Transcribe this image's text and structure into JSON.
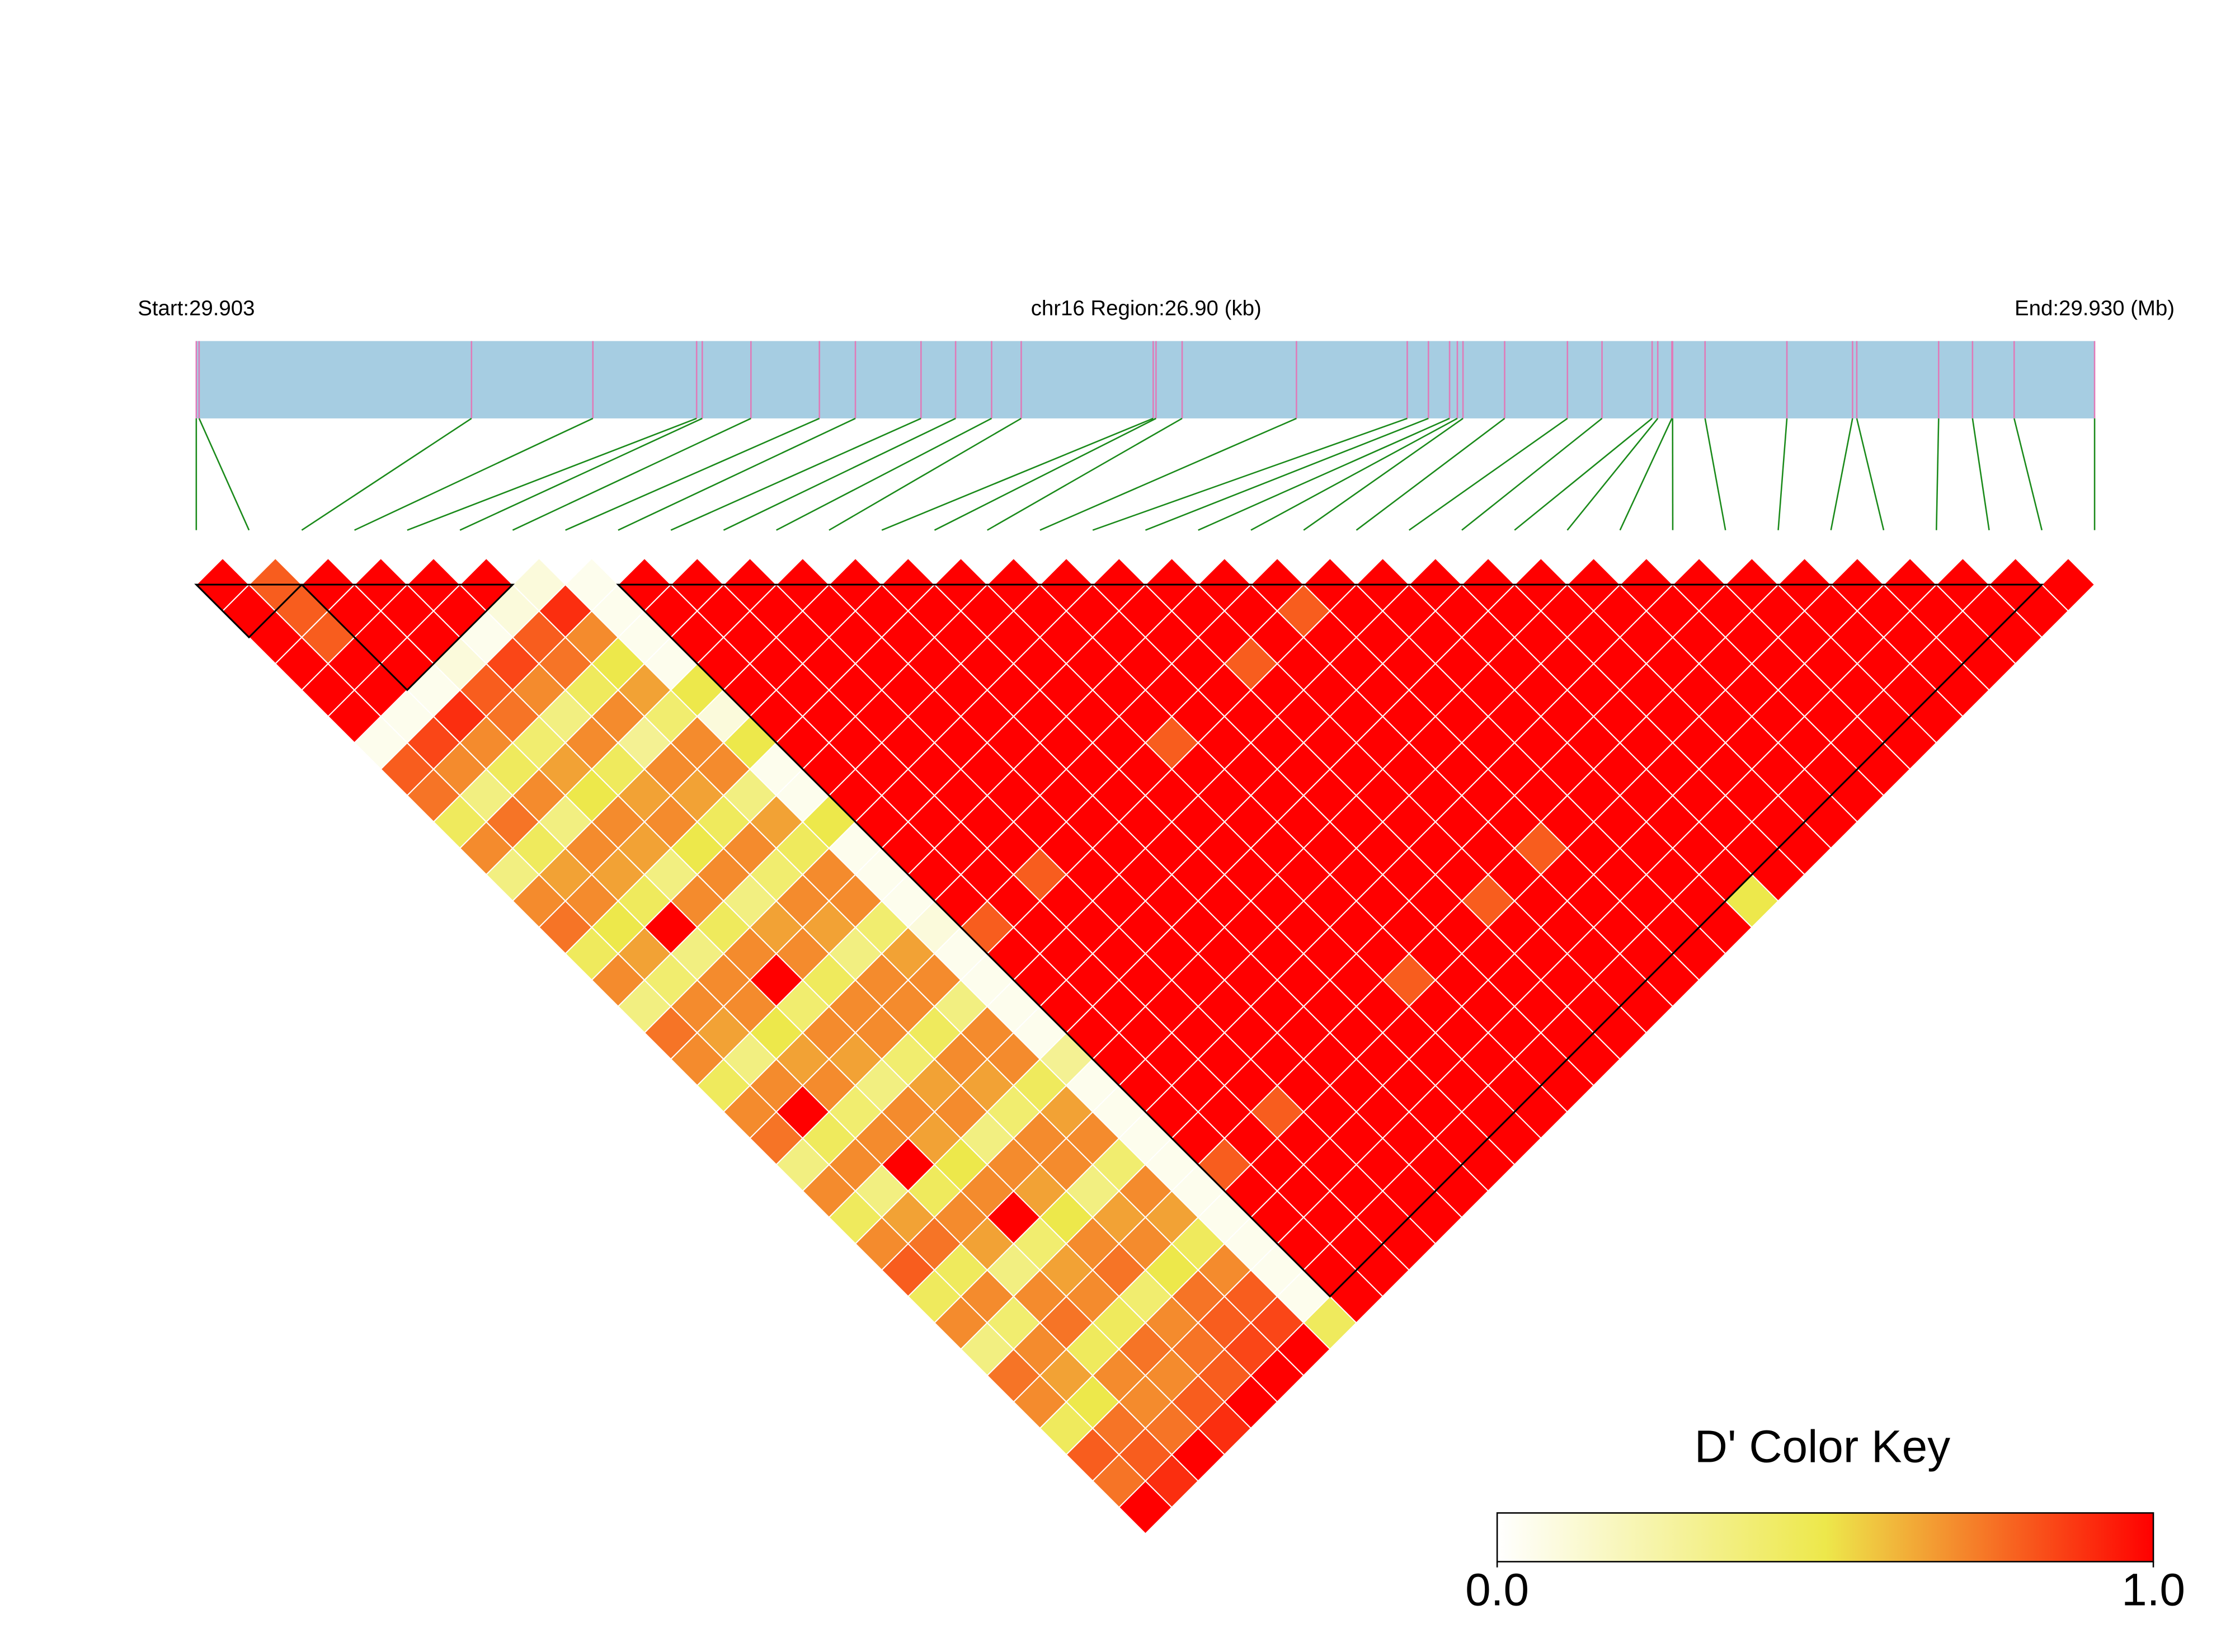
{
  "chart_data": {
    "type": "ld_heatmap",
    "start_label": "Start:29.903",
    "region_label": "chr16 Region:26.90 (kb)",
    "end_label": "End:29.930 (Mb)",
    "legend_title": "D' Color Key",
    "xlim": [
      29.903,
      29.9299
    ],
    "x": [
      29.903,
      29.90304,
      29.9069,
      29.90862,
      29.91009,
      29.91017,
      29.91086,
      29.91183,
      29.91234,
      29.91327,
      29.91376,
      29.91427,
      29.91469,
      29.91656,
      29.9166,
      29.91697,
      29.91859,
      29.92016,
      29.92046,
      29.92076,
      29.92087,
      29.92095,
      29.92154,
      29.92243,
      29.92292,
      29.92363,
      29.92371,
      29.92391,
      29.92392,
      29.92438,
      29.92554,
      29.92647,
      29.92653,
      29.92769,
      29.92817,
      29.92876,
      29.9299
    ],
    "values": [
      [
        1,
        1,
        1,
        1,
        1,
        1,
        0.05,
        0.8,
        0.75,
        0.45,
        0.7,
        0.35,
        0.7,
        0.75,
        0.45,
        0.7,
        0.35,
        0.75,
        0.7,
        0.45,
        0.7,
        0.75,
        0.35,
        0.7,
        0.45,
        0.7,
        0.8,
        0.45,
        0.7,
        0.35,
        0.75,
        0.7,
        0.45,
        0.8,
        0.75,
        1
      ],
      [
        0.8,
        0.8,
        0.8,
        1,
        1,
        0.05,
        0.85,
        0.7,
        0.35,
        0.75,
        0.45,
        0.65,
        0.7,
        0.5,
        0.65,
        0.4,
        0.7,
        0.65,
        0.35,
        0.7,
        1,
        0.45,
        0.7,
        0.35,
        0.65,
        0.75,
        0.45,
        0.7,
        0.4,
        0.7,
        0.65,
        0.5,
        0.75,
        0.8,
        0.9
      ],
      [
        1,
        1,
        1,
        1,
        0.05,
        0.9,
        0.7,
        0.45,
        0.7,
        0.35,
        0.7,
        0.65,
        0.45,
        1,
        0.35,
        0.7,
        0.7,
        0.5,
        0.65,
        0.7,
        0.4,
        0.7,
        1,
        0.45,
        0.7,
        0.65,
        0.35,
        0.7,
        0.75,
        0.45,
        0.7,
        0.7,
        0.75,
        1
      ],
      [
        1,
        1,
        1,
        0.1,
        0.8,
        0.75,
        0.4,
        0.65,
        0.5,
        0.7,
        0.65,
        0.35,
        0.7,
        0.45,
        0.7,
        1,
        0.4,
        0.7,
        0.65,
        0.35,
        0.7,
        0.65,
        0.5,
        0.7,
        1,
        0.4,
        0.65,
        0.7,
        0.45,
        0.75,
        0.7,
        0.8,
        0.9
      ],
      [
        1,
        1,
        0.05,
        0.85,
        0.7,
        0.35,
        0.7,
        0.45,
        0.65,
        0.7,
        0.5,
        0.7,
        0.35,
        0.65,
        0.7,
        0.45,
        0.7,
        0.7,
        0.4,
        0.65,
        0.7,
        0.35,
        0.7,
        0.65,
        0.5,
        0.7,
        0.75,
        0.4,
        0.7,
        0.75,
        0.8,
        1
      ],
      [
        1,
        0.1,
        0.8,
        0.75,
        0.45,
        0.7,
        0.3,
        0.7,
        0.65,
        0.45,
        0.7,
        0.4,
        0.7,
        0.65,
        0.35,
        0.7,
        0.7,
        0.45,
        0.7,
        0.65,
        0.4,
        0.7,
        0.7,
        0.35,
        0.65,
        0.7,
        0.5,
        0.75,
        0.8,
        0.85,
        1
      ],
      [
        0.1,
        0.9,
        0.7,
        0.5,
        0.65,
        0.4,
        0.7,
        0.7,
        0.35,
        0.65,
        0.45,
        0.7,
        0.7,
        0.4,
        0.65,
        0.7,
        0.35,
        0.7,
        0.7,
        0.45,
        0.65,
        0.7,
        0.4,
        0.7,
        0.65,
        0.45,
        0.7,
        0.8,
        0.85,
        1
      ],
      [
        0.05,
        0.05,
        0.05,
        0.05,
        0.5,
        0.1,
        0.5,
        0.05,
        0.05,
        0.5,
        0.05,
        0.05,
        0.05,
        0.1,
        0.05,
        0.05,
        0.05,
        0.05,
        0.3,
        0.05,
        0.05,
        0.05,
        0.05,
        0.05,
        0.05,
        0.05,
        0.05,
        0.05,
        0.45
      ],
      [
        1,
        1,
        1,
        1,
        1,
        1,
        1,
        1,
        1,
        1,
        1,
        1,
        1,
        0.8,
        1,
        1,
        1,
        1,
        1,
        1,
        1,
        1,
        0.8,
        1,
        1,
        1,
        1,
        1
      ],
      [
        1,
        1,
        1,
        1,
        1,
        1,
        1,
        1,
        1,
        1,
        1,
        1,
        1,
        1,
        1,
        1,
        1,
        1,
        1,
        1,
        1,
        1,
        1,
        1,
        1,
        1,
        1
      ],
      [
        1,
        1,
        1,
        1,
        1,
        1,
        1,
        1,
        1,
        1,
        1,
        0.8,
        1,
        1,
        1,
        1,
        1,
        1,
        1,
        1,
        0.8,
        1,
        1,
        1,
        1,
        1
      ],
      [
        1,
        1,
        1,
        1,
        1,
        1,
        1,
        1,
        1,
        1,
        1,
        1,
        1,
        1,
        1,
        1,
        1,
        1,
        1,
        1,
        1,
        1,
        1,
        1,
        1
      ],
      [
        1,
        1,
        1,
        1,
        1,
        1,
        1,
        1,
        1,
        1,
        1,
        1,
        1,
        1,
        1,
        1,
        1,
        1,
        1,
        1,
        1,
        1,
        1,
        1
      ],
      [
        1,
        1,
        1,
        1,
        1,
        1,
        1,
        1,
        1,
        1,
        1,
        1,
        1,
        1,
        1,
        1,
        1,
        1,
        1,
        1,
        1,
        1,
        1
      ],
      [
        1,
        1,
        1,
        1,
        1,
        1,
        1,
        1,
        1,
        1,
        1,
        1,
        1,
        1,
        1,
        1,
        1,
        1,
        1,
        1,
        1,
        1
      ],
      [
        1,
        1,
        1,
        1,
        1,
        1,
        0.8,
        1,
        1,
        1,
        1,
        1,
        1,
        1,
        1,
        0.8,
        1,
        1,
        1,
        1,
        1
      ],
      [
        1,
        1,
        1,
        1,
        1,
        1,
        1,
        1,
        1,
        1,
        1,
        1,
        1,
        1,
        1,
        1,
        1,
        1,
        1,
        1
      ],
      [
        1,
        1,
        1,
        1,
        1,
        1,
        1,
        1,
        1,
        1,
        1,
        1,
        1,
        1,
        1,
        1,
        1,
        1,
        1
      ],
      [
        1,
        1,
        1,
        0.8,
        1,
        1,
        1,
        1,
        1,
        1,
        1,
        1,
        0.8,
        1,
        1,
        1,
        1,
        1
      ],
      [
        1,
        1,
        1,
        1,
        1,
        1,
        1,
        1,
        1,
        1,
        1,
        1,
        1,
        1,
        1,
        1,
        1
      ],
      [
        1,
        0.8,
        1,
        1,
        1,
        1,
        1,
        1,
        1,
        1,
        0.8,
        1,
        1,
        1,
        1,
        1
      ],
      [
        1,
        1,
        1,
        1,
        1,
        1,
        1,
        1,
        1,
        1,
        1,
        1,
        1,
        1,
        1
      ],
      [
        1,
        1,
        1,
        1,
        1,
        1,
        1,
        1,
        1,
        1,
        1,
        1,
        1,
        1
      ],
      [
        1,
        1,
        1,
        1,
        1,
        1,
        1,
        1,
        1,
        1,
        1,
        1,
        0.5
      ],
      [
        1,
        1,
        1,
        1,
        1,
        1,
        1,
        1,
        1,
        1,
        1,
        1
      ],
      [
        1,
        1,
        1,
        1,
        1,
        1,
        1,
        1,
        1,
        1,
        1
      ],
      [
        1,
        1,
        1,
        1,
        1,
        1,
        1,
        1,
        1,
        1
      ],
      [
        1,
        1,
        1,
        1,
        1,
        1,
        1,
        1,
        1
      ],
      [
        1,
        1,
        1,
        1,
        1,
        1,
        1,
        1
      ],
      [
        1,
        1,
        1,
        1,
        1,
        1,
        1
      ],
      [
        1,
        1,
        1,
        1,
        1,
        1
      ],
      [
        1,
        1,
        1,
        1,
        1
      ],
      [
        1,
        1,
        1,
        1
      ],
      [
        1,
        1,
        1
      ],
      [
        1,
        1
      ],
      [
        1
      ]
    ],
    "blocks": [
      [
        0,
        2
      ],
      [
        2,
        6
      ],
      [
        8,
        35
      ]
    ],
    "colorscale": [
      [
        0,
        "#ffffff"
      ],
      [
        0.5,
        "#ede84b"
      ],
      [
        1,
        "#ff0000"
      ]
    ],
    "legend_ticks": [
      {
        "value": 0,
        "label": "0.0"
      },
      {
        "value": 1,
        "label": "1.0"
      }
    ],
    "bar_color": "#a6cde2",
    "snp_line_color": "#e07ab8",
    "connector_color": "#1a8a1a"
  }
}
